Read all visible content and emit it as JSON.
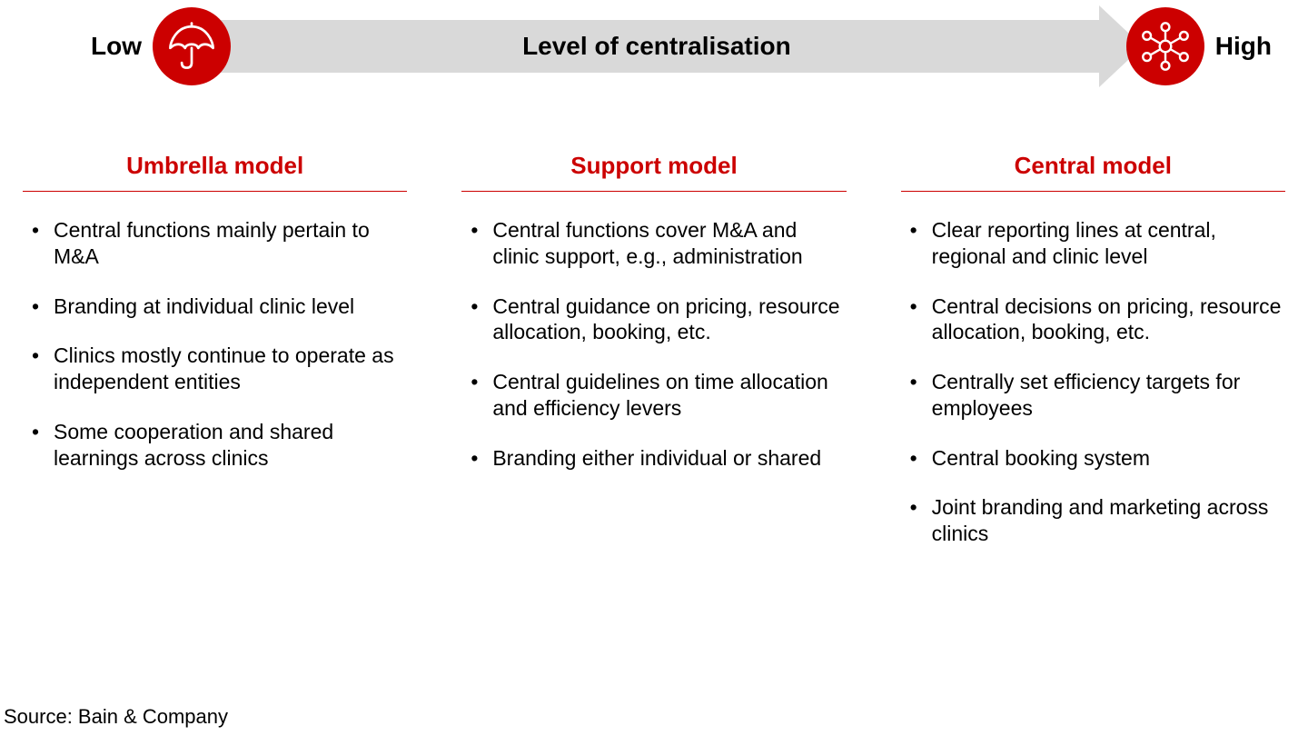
{
  "colors": {
    "accent": "#cc0000",
    "arrow_bg": "#d9d9d9",
    "icon_stroke": "#ffffff",
    "text": "#000000",
    "divider": "#cc0000",
    "background": "#ffffff"
  },
  "header": {
    "low_label": "Low",
    "high_label": "High",
    "arrow_label": "Level of centralisation",
    "left_icon": "umbrella-icon",
    "right_icon": "network-icon"
  },
  "columns": [
    {
      "title": "Umbrella model",
      "bullets": [
        "Central functions mainly pertain to M&A",
        "Branding at individual clinic level",
        "Clinics mostly continue to operate as independent entities",
        "Some cooperation and shared learnings across clinics"
      ]
    },
    {
      "title": "Support model",
      "bullets": [
        "Central functions cover M&A and clinic support, e.g., administration",
        "Central guidance on pricing, resource allocation, booking, etc.",
        "Central guidelines on time allocation and efficiency levers",
        "Branding either individual or shared"
      ]
    },
    {
      "title": "Central model",
      "bullets": [
        "Clear reporting lines at central, regional and clinic level",
        "Central decisions on pricing, resource allocation, booking, etc.",
        "Centrally set efficiency targets for employees",
        "Central booking system",
        "Joint branding and marketing across clinics"
      ]
    }
  ],
  "source_label": "Source:  Bain & Company"
}
